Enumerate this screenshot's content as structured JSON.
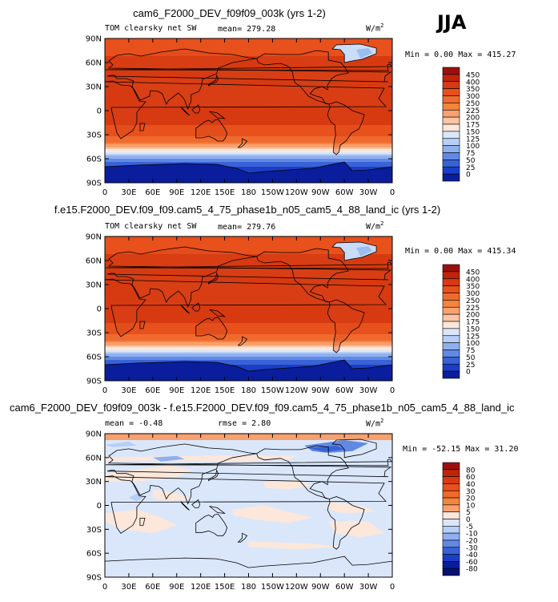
{
  "season": "JJA",
  "common": {
    "lat_ticks": [
      "90N",
      "60N",
      "30N",
      "0",
      "30S",
      "60S",
      "90S"
    ],
    "lon_ticks": [
      "0",
      "30E",
      "60E",
      "90E",
      "120E",
      "150E",
      "180",
      "150W",
      "120W",
      "90W",
      "60W",
      "30W",
      "0"
    ]
  },
  "panels": [
    {
      "title": "cam6_F2000_DEV_f09f09_003k (yrs 1-2)",
      "left_label": "TOM clearsky net SW",
      "stat1": "mean= 279.28",
      "stat2": "",
      "units": "W/m",
      "units_sup": "2",
      "minmax": "Min =   0.00 Max = 415.27"
    },
    {
      "title": "f.e15.F2000_DEV.f09_f09.cam5_4_75_phase1b_n05_cam5_4_88_land_ic (yrs 1-2)",
      "left_label": "TOM clearsky net SW",
      "stat1": "mean= 279.76",
      "stat2": "",
      "units": "W/m",
      "units_sup": "2",
      "minmax": "Min =   0.00 Max = 415.34"
    },
    {
      "title": "cam6_F2000_DEV_f09f09_003k - f.e15.F2000_DEV.f09_f09.cam5_4_75_phase1b_n05_cam5_4_88_land_ic",
      "left_label": "",
      "stat1": "mean =  -0.48",
      "stat2": "rmse =   2.80",
      "units": "W/m",
      "units_sup": "2",
      "minmax": "Min = -52.15 Max =  31.20"
    }
  ],
  "colorbars": [
    {
      "labels": [
        "450",
        "400",
        "350",
        "300",
        "250",
        "225",
        "200",
        "175",
        "150",
        "125",
        "100",
        "75",
        "50",
        "25",
        "0"
      ],
      "colors": [
        "#9c0f0f",
        "#c0240a",
        "#d73a10",
        "#e8501c",
        "#f06a2e",
        "#f4843e",
        "#f7a070",
        "#fbc4a4",
        "#fce7da",
        "#dae7fb",
        "#b6cff7",
        "#8fb0ef",
        "#6189e4",
        "#3862d6",
        "#1a3ec8",
        "#0a1d9c"
      ]
    },
    {
      "labels": [
        "80",
        "60",
        "40",
        "30",
        "20",
        "10",
        "5",
        "0",
        "-5",
        "-10",
        "-20",
        "-30",
        "-40",
        "-60",
        "-80"
      ],
      "colors": [
        "#9c0f0f",
        "#c0240a",
        "#d73a10",
        "#e8501c",
        "#f06a2e",
        "#f4843e",
        "#f7a070",
        "#fce7da",
        "#dae7fb",
        "#b6cff7",
        "#8fb0ef",
        "#6189e4",
        "#3862d6",
        "#1a3ec8",
        "#0a1d9c",
        "#06126e"
      ]
    }
  ],
  "chart_data": [
    {
      "type": "heatmap",
      "title": "cam6_F2000_DEV_f09f09_003k (yrs 1-2)",
      "variable": "TOM clearsky net SW",
      "units": "W/m2",
      "season": "JJA",
      "mean": 279.28,
      "min": 0.0,
      "max": 415.27,
      "xlabels": [
        "0",
        "30E",
        "60E",
        "90E",
        "120E",
        "150E",
        "180",
        "150W",
        "120W",
        "90W",
        "60W",
        "30W",
        "0"
      ],
      "ylabels": [
        "90N",
        "60N",
        "30N",
        "0",
        "30S",
        "60S",
        "90S"
      ],
      "colorbar_levels": [
        0,
        25,
        50,
        75,
        100,
        125,
        150,
        175,
        200,
        225,
        250,
        300,
        350,
        400,
        450
      ],
      "zonal_profile": {
        "lat": [
          90,
          75,
          60,
          45,
          30,
          15,
          0,
          -15,
          -30,
          -40,
          -50,
          -60,
          -70,
          -80,
          -90
        ],
        "value": [
          300,
          330,
          370,
          390,
          400,
          390,
          370,
          360,
          320,
          250,
          160,
          70,
          20,
          3,
          0
        ]
      }
    },
    {
      "type": "heatmap",
      "title": "f.e15.F2000_DEV.f09_f09.cam5_4_75_phase1b_n05_cam5_4_88_land_ic (yrs 1-2)",
      "variable": "TOM clearsky net SW",
      "units": "W/m2",
      "season": "JJA",
      "mean": 279.76,
      "min": 0.0,
      "max": 415.34,
      "xlabels": [
        "0",
        "30E",
        "60E",
        "90E",
        "120E",
        "150E",
        "180",
        "150W",
        "120W",
        "90W",
        "60W",
        "30W",
        "0"
      ],
      "ylabels": [
        "90N",
        "60N",
        "30N",
        "0",
        "30S",
        "60S",
        "90S"
      ],
      "colorbar_levels": [
        0,
        25,
        50,
        75,
        100,
        125,
        150,
        175,
        200,
        225,
        250,
        300,
        350,
        400,
        450
      ],
      "zonal_profile": {
        "lat": [
          90,
          75,
          60,
          45,
          30,
          15,
          0,
          -15,
          -30,
          -40,
          -50,
          -60,
          -70,
          -80,
          -90
        ],
        "value": [
          300,
          330,
          370,
          390,
          400,
          390,
          370,
          360,
          320,
          250,
          160,
          70,
          20,
          3,
          0
        ]
      }
    },
    {
      "type": "heatmap",
      "title": "cam6_F2000_DEV_f09f09_003k - f.e15.F2000_DEV.f09_f09.cam5_4_75_phase1b_n05_cam5_4_88_land_ic",
      "units": "W/m2",
      "mean": -0.48,
      "rmse": 2.8,
      "min": -52.15,
      "max": 31.2,
      "xlabels": [
        "0",
        "30E",
        "60E",
        "90E",
        "120E",
        "150E",
        "180",
        "150W",
        "120W",
        "90W",
        "60W",
        "30W",
        "0"
      ],
      "ylabels": [
        "90N",
        "60N",
        "30N",
        "0",
        "30S",
        "60S",
        "90S"
      ],
      "colorbar_levels": [
        -80,
        -60,
        -40,
        -30,
        -20,
        -10,
        -5,
        0,
        5,
        10,
        20,
        30,
        40,
        60,
        80
      ]
    }
  ]
}
